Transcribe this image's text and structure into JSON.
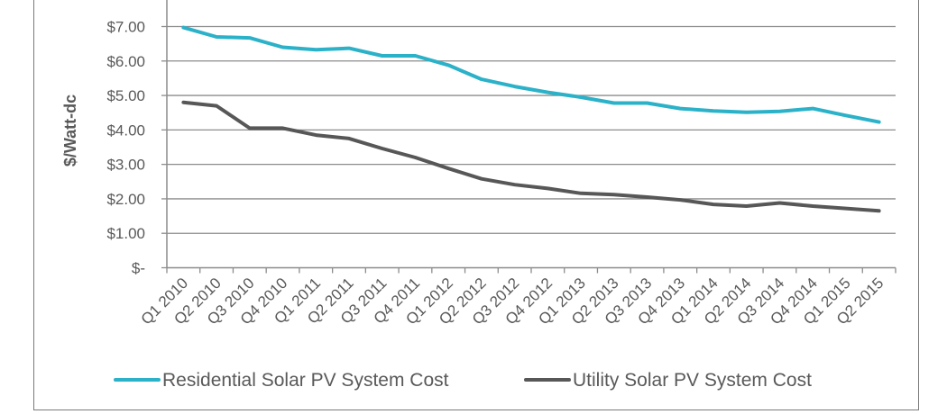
{
  "chart_data": {
    "type": "line",
    "title": "",
    "xlabel": "",
    "ylabel": "$/Watt-dc",
    "ylim": [
      0,
      7
    ],
    "y_ticks": [
      0,
      1,
      2,
      3,
      4,
      5,
      6,
      7
    ],
    "y_tick_labels": [
      "$-",
      "$1.00",
      "$2.00",
      "$3.00",
      "$4.00",
      "$5.00",
      "$6.00",
      "$7.00"
    ],
    "grid": true,
    "legend_position": "bottom",
    "categories": [
      "Q1 2010",
      "Q2 2010",
      "Q3 2010",
      "Q4 2010",
      "Q1 2011",
      "Q2 2011",
      "Q3 2011",
      "Q4 2011",
      "Q1 2012",
      "Q2 2012",
      "Q3 2012",
      "Q4 2012",
      "Q1 2013",
      "Q2 2013",
      "Q3 2013",
      "Q4 2013",
      "Q1 2014",
      "Q2 2014",
      "Q3 2014",
      "Q4 2014",
      "Q1 2015",
      "Q2 2015"
    ],
    "series": [
      {
        "name": "Residential Solar PV System Cost",
        "color": "#2bb1c8",
        "values": [
          6.97,
          6.7,
          6.67,
          6.4,
          6.33,
          6.37,
          6.15,
          6.15,
          5.88,
          5.47,
          5.26,
          5.09,
          4.95,
          4.78,
          4.78,
          4.62,
          4.55,
          4.51,
          4.54,
          4.62,
          4.42,
          4.23
        ]
      },
      {
        "name": "Utility Solar PV System Cost",
        "color": "#575757",
        "values": [
          4.8,
          4.7,
          4.05,
          4.05,
          3.85,
          3.75,
          3.46,
          3.2,
          2.88,
          2.58,
          2.41,
          2.3,
          2.16,
          2.12,
          2.05,
          1.97,
          1.84,
          1.79,
          1.88,
          1.79,
          1.72,
          1.65
        ]
      }
    ]
  }
}
